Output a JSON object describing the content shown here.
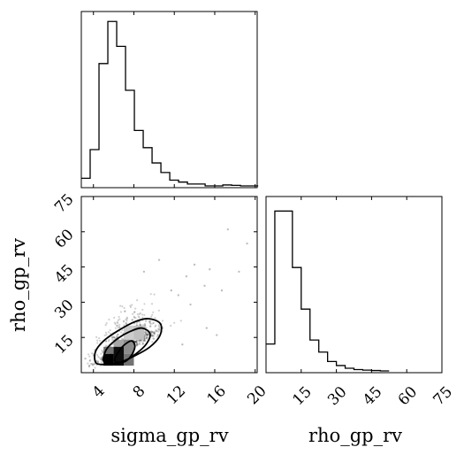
{
  "chart_data": {
    "type": "corner",
    "parameters": [
      "sigma_gp_rv",
      "rho_gp_rv"
    ],
    "panels": [
      {
        "id": "hist_sigma_gp_rv",
        "type": "histogram",
        "xlim": [
          2.8,
          20.2
        ],
        "bin_edges": [
          2.8,
          3.675,
          4.55,
          5.425,
          6.3,
          7.175,
          8.05,
          8.925,
          9.8,
          10.675,
          11.55,
          12.425,
          13.3,
          14.175,
          15.05,
          15.925,
          16.8,
          17.675,
          18.55,
          19.425,
          20.3
        ],
        "counts": [
          4,
          19,
          64,
          86,
          73,
          50,
          29,
          20,
          12,
          7,
          3,
          2,
          1,
          1,
          0,
          0,
          0.5,
          0.3,
          0,
          0
        ]
      },
      {
        "id": "hist_rho_gp_rv",
        "type": "histogram",
        "xlim": [
          0,
          75
        ],
        "xticks": [
          15,
          30,
          45,
          60,
          75
        ],
        "xlabel": "rho_gp_rv",
        "bin_edges": [
          0,
          3.75,
          7.5,
          11.25,
          15,
          18.75,
          22.5,
          26.25,
          30,
          33.75,
          37.5,
          41.25,
          45,
          48.75,
          52.5
        ],
        "counts": [
          20,
          119,
          119,
          77,
          46,
          23,
          14,
          7,
          4,
          2,
          1,
          0.6,
          0.3,
          0
        ]
      },
      {
        "id": "joint_sigma_rho",
        "type": "scatter_with_contours",
        "xlim": [
          2.8,
          20.2
        ],
        "ylim": [
          0,
          75
        ],
        "xticks": [
          4,
          8,
          12,
          16,
          20
        ],
        "yticks": [
          15,
          30,
          45,
          60,
          75
        ],
        "xlabel": "sigma_gp_rv",
        "ylabel": "rho_gp_rv",
        "outlier_points": [
          [
            17.3,
            61
          ],
          [
            19.2,
            55
          ],
          [
            15.5,
            44
          ],
          [
            14.0,
            46
          ],
          [
            13.2,
            41
          ],
          [
            15.0,
            37
          ],
          [
            16.7,
            35
          ],
          [
            12.4,
            33
          ],
          [
            11.7,
            35
          ],
          [
            13.6,
            29
          ],
          [
            15.2,
            19
          ],
          [
            16.2,
            16
          ],
          [
            12.8,
            12
          ],
          [
            3.2,
            6
          ],
          [
            3.6,
            3
          ],
          [
            18.4,
            43
          ],
          [
            10.5,
            48
          ],
          [
            9.0,
            43
          ]
        ],
        "dense_blocks": [
          {
            "x": [
              5.0,
              6.0
            ],
            "y": [
              3,
              8
            ],
            "level": 1.0
          },
          {
            "x": [
              6.0,
              7.0
            ],
            "y": [
              3,
              11
            ],
            "level": 0.95
          },
          {
            "x": [
              5.0,
              6.0
            ],
            "y": [
              8,
              11
            ],
            "level": 0.55
          },
          {
            "x": [
              7.0,
              8.0
            ],
            "y": [
              3,
              8
            ],
            "level": 0.55
          },
          {
            "x": [
              7.0,
              8.0
            ],
            "y": [
              8,
              14
            ],
            "level": 0.45
          },
          {
            "x": [
              6.0,
              7.0
            ],
            "y": [
              11,
              14
            ],
            "level": 0.35
          },
          {
            "x": [
              8.0,
              9.0
            ],
            "y": [
              14,
              20
            ],
            "level": 0.25
          },
          {
            "x": [
              7.0,
              8.0
            ],
            "y": [
              14,
              20
            ],
            "level": 0.2
          }
        ],
        "contours": [
          [
            [
              4.2,
              4.5
            ],
            [
              4.2,
              9.0
            ],
            [
              5.0,
              13.5
            ],
            [
              6.3,
              17.5
            ],
            [
              8.0,
              21.5
            ],
            [
              9.4,
              23.0
            ],
            [
              10.6,
              21.0
            ],
            [
              10.6,
              16.0
            ],
            [
              9.6,
              11.0
            ],
            [
              8.0,
              7.0
            ],
            [
              6.2,
              3.8
            ],
            [
              4.8,
              3.5
            ]
          ],
          [
            [
              5.0,
              5.0
            ],
            [
              5.3,
              10.0
            ],
            [
              6.3,
              14.2
            ],
            [
              7.6,
              17.5
            ],
            [
              8.8,
              19.0
            ],
            [
              9.6,
              16.5
            ],
            [
              9.2,
              12.0
            ],
            [
              8.2,
              8.0
            ],
            [
              7.1,
              5.0
            ],
            [
              5.8,
              3.8
            ]
          ],
          [
            [
              6.1,
              5.0
            ],
            [
              6.5,
              9.0
            ],
            [
              7.1,
              12.0
            ],
            [
              7.8,
              13.5
            ],
            [
              8.1,
              11.0
            ],
            [
              7.7,
              7.0
            ],
            [
              7.0,
              4.5
            ]
          ]
        ]
      }
    ]
  }
}
